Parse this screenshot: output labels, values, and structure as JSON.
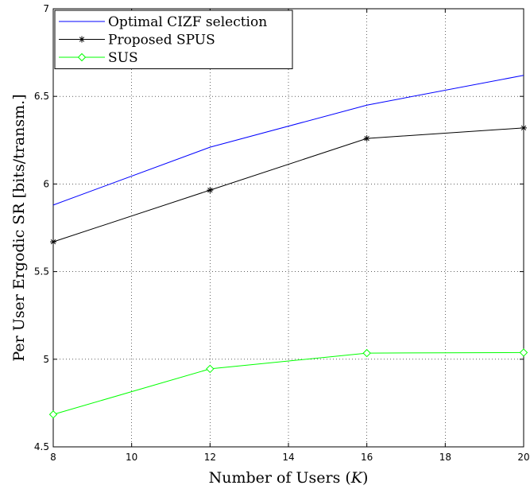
{
  "chart_data": {
    "type": "line",
    "x": [
      8,
      12,
      16,
      20
    ],
    "xlabel": "Number of Users (",
    "xlabel_var": "K",
    "xlabel_close": ")",
    "ylabel": "Per User Ergodic SR [bits/transm.]",
    "xlim": [
      8,
      20
    ],
    "ylim": [
      4.5,
      7
    ],
    "xticks": [
      8,
      10,
      12,
      14,
      16,
      18,
      20
    ],
    "yticks": [
      4.5,
      5,
      5.5,
      6,
      6.5,
      7
    ],
    "grid": true,
    "legend_position": "top-left",
    "series": [
      {
        "name": "Optimal CIZF selection",
        "values": [
          5.88,
          6.21,
          6.45,
          6.62
        ],
        "color": "#0000ff",
        "marker": "none"
      },
      {
        "name": "Proposed SPUS",
        "values": [
          5.67,
          5.965,
          6.26,
          6.32
        ],
        "color": "#000000",
        "marker": "asterisk"
      },
      {
        "name": "SUS",
        "values": [
          4.685,
          4.945,
          5.035,
          5.038
        ],
        "color": "#00ff00",
        "marker": "diamond"
      }
    ]
  }
}
